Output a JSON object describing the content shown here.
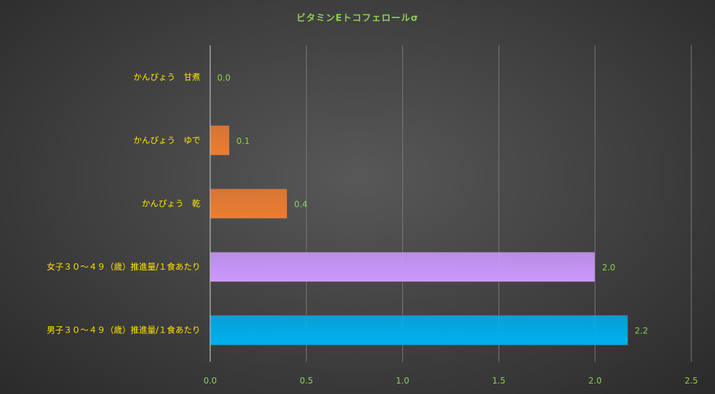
{
  "chart_data": {
    "type": "bar",
    "orientation": "horizontal",
    "title": "ビタミンEトコフェロールσ",
    "categories": [
      "かんぴょう　甘煮",
      "かんぴょう　ゆで",
      "かんぴょう　乾",
      "女子３０～４９（歳）推進量/１食あたり",
      "男子３０～４９（歳）推進量/１食あたり"
    ],
    "values": [
      0.0,
      0.1,
      0.4,
      2.0,
      2.17
    ],
    "data_labels": [
      "0.0",
      "0.1",
      "0.4",
      "2.0",
      "2.2"
    ],
    "bar_colors": [
      "#ed7d31",
      "#ed7d31",
      "#ed7d31",
      "#cc99ff",
      "#00b0f0"
    ],
    "xlim": [
      0,
      2.5
    ],
    "x_ticks": [
      "0.0",
      "0.5",
      "1.0",
      "1.5",
      "2.0",
      "2.5"
    ],
    "grid": true,
    "legend": "none"
  }
}
